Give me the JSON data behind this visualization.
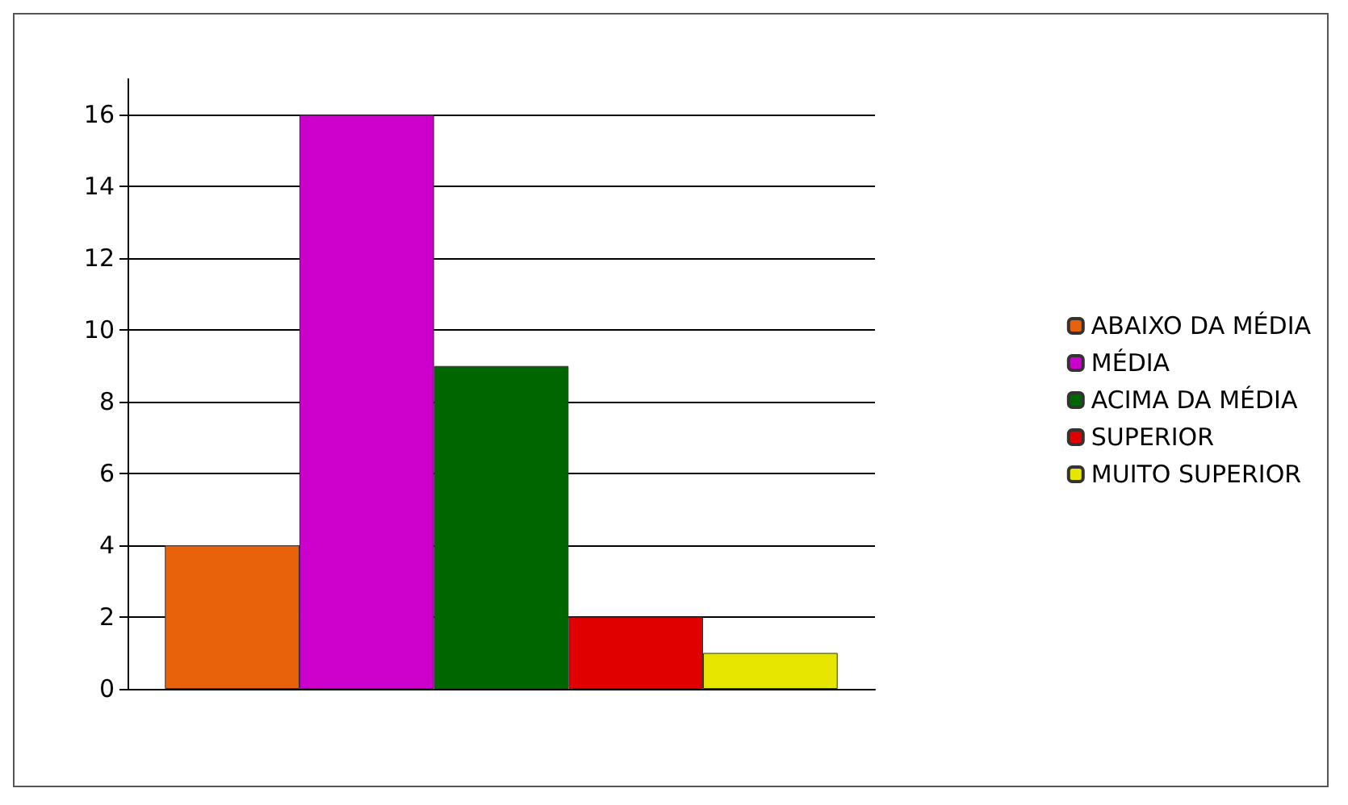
{
  "chart_data": {
    "type": "bar",
    "categories": [
      null
    ],
    "series": [
      {
        "name": "ABAIXO DA MÉDIA",
        "color": "#e8620c",
        "values": [
          4
        ]
      },
      {
        "name": "MÉDIA",
        "color": "#cc00cc",
        "values": [
          16
        ]
      },
      {
        "name": "ACIMA DA MÉDIA",
        "color": "#006600",
        "values": [
          9
        ]
      },
      {
        "name": "SUPERIOR",
        "color": "#e00000",
        "values": [
          2
        ]
      },
      {
        "name": "MUITO SUPERIOR",
        "color": "#e6e600",
        "values": [
          1
        ]
      }
    ],
    "ylim": [
      0,
      17
    ],
    "yticks": [
      0,
      2,
      4,
      6,
      8,
      10,
      12,
      14,
      16
    ],
    "grid": "y",
    "legend": "right"
  }
}
